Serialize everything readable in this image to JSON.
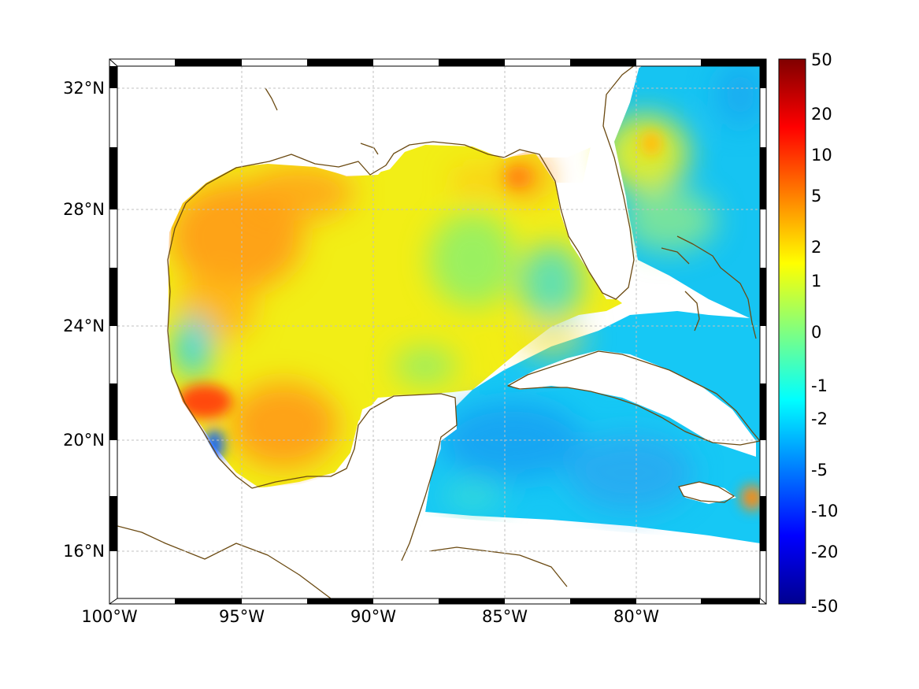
{
  "map": {
    "lon_labels": [
      "100°W",
      "95°W",
      "90°W",
      "85°W",
      "80°W"
    ],
    "lat_labels": [
      "32°N",
      "28°N",
      "24°N",
      "20°N",
      "16°N"
    ],
    "coastline_color": "#6b4a12",
    "land_color": "#ffffff"
  },
  "colorbar": {
    "tick_labels": [
      "50",
      "20",
      "10",
      "5",
      "2",
      "1",
      "0",
      "-1",
      "-2",
      "-5",
      "-10",
      "-20",
      "-50"
    ],
    "colormap": "jet"
  }
}
